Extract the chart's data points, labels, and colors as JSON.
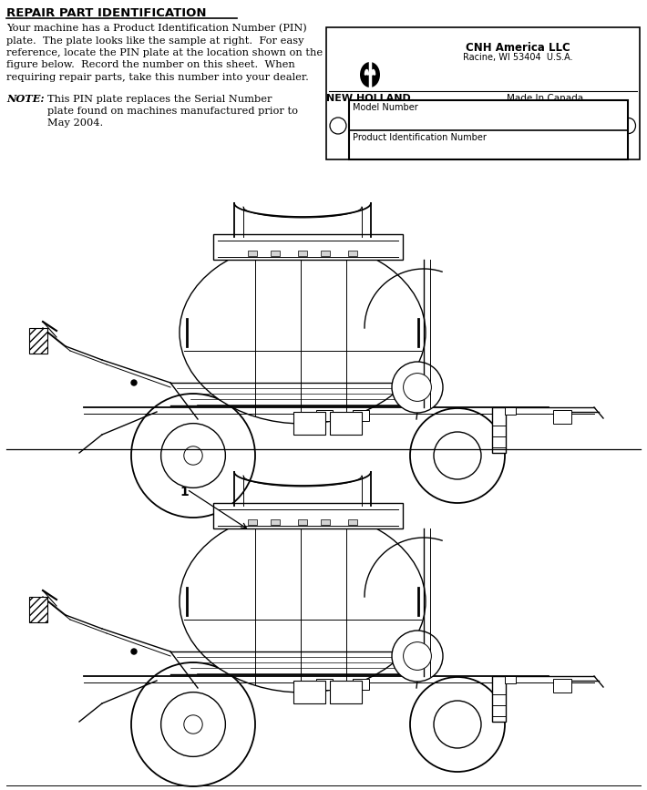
{
  "title": "REPAIR PART IDENTIFICATION",
  "body_text_lines": [
    "Your machine has a Product Identification Number (PIN)",
    "plate.  The plate looks like the sample at right.  For easy",
    "reference, locate the PIN plate at the location shown on the",
    "figure below.  Record the number on this sheet.  When",
    "requiring repair parts, take this number into your dealer."
  ],
  "note_label": "NOTE:",
  "note_text_lines": [
    "This PIN plate replaces the Serial Number",
    "plate found on machines manufactured prior to",
    "May 2004."
  ],
  "pin_plate": {
    "company": "CNH America LLC",
    "address": "Racine, WI 53404  U.S.A.",
    "brand": "NEW HOLLAND.",
    "origin": "Made In Canada",
    "field1": "Model Number",
    "field2": "Product Identification Number"
  },
  "label_1": "1",
  "bg_color": "#ffffff",
  "text_color": "#000000",
  "fig_width": 7.1,
  "fig_height": 8.67,
  "dpi": 100
}
